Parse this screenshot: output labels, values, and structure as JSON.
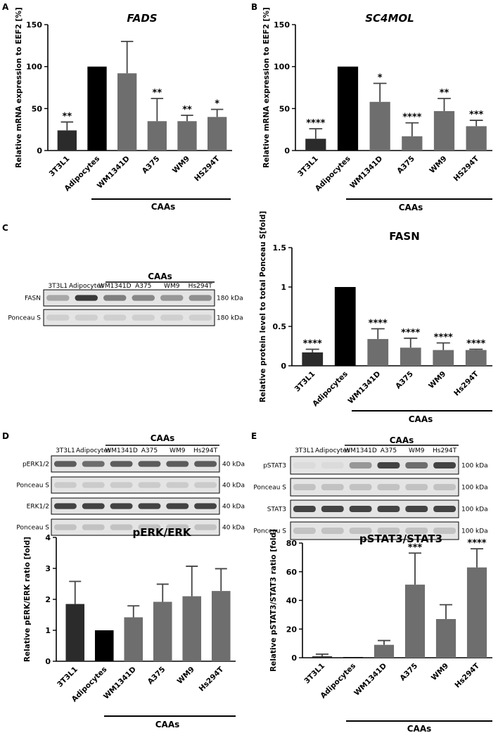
{
  "colors": {
    "black": "#000000",
    "dark": "#2b2b2b",
    "mid": "#6e6e6e",
    "blot_bg": "#e4e4e4",
    "band": "#3a3a3a"
  },
  "blots": {
    "C": {
      "letter": "C",
      "caas": "CAAs",
      "lanes": [
        "3T3L1",
        "Adipocytes",
        "WM1341D",
        "A375",
        "WM9",
        "Hs294T"
      ],
      "strips": [
        {
          "label": "FASN",
          "kda": "180 kDa",
          "intensity": [
            0.35,
            1.0,
            0.6,
            0.55,
            0.45,
            0.5
          ]
        },
        {
          "label": "Ponceau S",
          "kda": "180 kDa",
          "intensity": [
            0.12,
            0.12,
            0.12,
            0.12,
            0.12,
            0.12
          ]
        }
      ]
    },
    "D": {
      "letter": "D",
      "caas": "CAAs",
      "lanes": [
        "3T3L1",
        "Adipocytes",
        "WM1341D",
        "A375",
        "WM9",
        "Hs294T"
      ],
      "strips": [
        {
          "label": "pERK1/2",
          "kda": "40 kDa",
          "intensity": [
            0.8,
            0.7,
            0.8,
            0.8,
            0.8,
            0.8
          ]
        },
        {
          "label": "Ponceau S",
          "kda": "40 kDa",
          "intensity": [
            0.15,
            0.15,
            0.15,
            0.15,
            0.15,
            0.15
          ]
        },
        {
          "label": "ERK1/2",
          "kda": "40 kDa",
          "intensity": [
            0.95,
            0.95,
            0.95,
            0.95,
            0.95,
            0.95
          ]
        },
        {
          "label": "Ponceau S",
          "kda": "40 kDa",
          "intensity": [
            0.2,
            0.2,
            0.2,
            0.2,
            0.2,
            0.2
          ]
        }
      ]
    },
    "E": {
      "letter": "E",
      "caas": "CAAs",
      "lanes": [
        "3T3L1",
        "Adipocytes",
        "WM1341D",
        "A375",
        "WM9",
        "Hs294T"
      ],
      "strips": [
        {
          "label": "pSTAT3",
          "kda": "100 kDa",
          "intensity": [
            0.05,
            0.05,
            0.45,
            0.95,
            0.7,
            0.95
          ]
        },
        {
          "label": "Ponceau S",
          "kda": "100 kDa",
          "intensity": [
            0.2,
            0.2,
            0.2,
            0.2,
            0.2,
            0.2
          ]
        },
        {
          "label": "STAT3",
          "kda": "100 kDa",
          "intensity": [
            0.95,
            0.95,
            0.95,
            0.95,
            0.95,
            0.95
          ]
        },
        {
          "label": "Ponceau S",
          "kda": "100 kDa",
          "intensity": [
            0.2,
            0.2,
            0.2,
            0.2,
            0.2,
            0.2
          ]
        }
      ]
    }
  },
  "chart_data": [
    {
      "type": "bar",
      "letter": "A",
      "title": "FADS",
      "title_italic": true,
      "ylabel": "Relative mRNA expression to EEF2 [%]",
      "categories": [
        "3T3L1",
        "Adipocytes",
        "WM1341D",
        "A375",
        "WM9",
        "HS294T"
      ],
      "values": [
        24,
        100,
        92,
        35,
        35,
        40
      ],
      "errors": [
        10,
        0,
        38,
        27,
        7,
        9
      ],
      "significance": [
        "**",
        "",
        "",
        "**",
        "**",
        "*"
      ],
      "ylim": [
        0,
        150
      ],
      "yticks": [
        0,
        50,
        100,
        150
      ],
      "bracket_label": "CAAs",
      "bar_colors": [
        "#2b2b2b",
        "#000000",
        "#6e6e6e",
        "#6e6e6e",
        "#6e6e6e",
        "#6e6e6e"
      ]
    },
    {
      "type": "bar",
      "letter": "B",
      "title": "SC4MOL",
      "title_italic": true,
      "ylabel": "Relative mRNA expression to EEF2 [%]",
      "categories": [
        "3T3L1",
        "Adipocytes",
        "WM1341D",
        "A375",
        "WM9",
        "HS294T"
      ],
      "values": [
        14,
        100,
        58,
        17,
        47,
        29
      ],
      "errors": [
        12,
        0,
        22,
        16,
        15,
        7
      ],
      "significance": [
        "****",
        "",
        "*",
        "****",
        "**",
        "***"
      ],
      "ylim": [
        0,
        150
      ],
      "yticks": [
        0,
        50,
        100,
        150
      ],
      "bracket_label": "CAAs",
      "bar_colors": [
        "#2b2b2b",
        "#000000",
        "#6e6e6e",
        "#6e6e6e",
        "#6e6e6e",
        "#6e6e6e"
      ]
    },
    {
      "type": "bar",
      "letter": "",
      "title": "FASN",
      "title_italic": false,
      "ylabel": "Relative protein level to total Ponceau S[fold]",
      "categories": [
        "3T3L1",
        "Adipocytes",
        "WM1341D",
        "A375",
        "WM9",
        "Hs294T"
      ],
      "values": [
        0.17,
        1.0,
        0.34,
        0.23,
        0.2,
        0.2
      ],
      "errors": [
        0.04,
        0,
        0.13,
        0.12,
        0.09,
        0.01
      ],
      "significance": [
        "****",
        "",
        "****",
        "****",
        "****",
        "****"
      ],
      "ylim": [
        0,
        1.5
      ],
      "yticks": [
        0.0,
        0.5,
        1.0,
        1.5
      ],
      "bracket_label": "CAAs",
      "bar_colors": [
        "#2b2b2b",
        "#000000",
        "#6e6e6e",
        "#6e6e6e",
        "#6e6e6e",
        "#6e6e6e"
      ]
    },
    {
      "type": "bar",
      "letter": "",
      "title": "pERK/ERK",
      "title_italic": false,
      "ylabel": "Relative pERK/ERK ratio [fold]",
      "categories": [
        "3T3L1",
        "Adipocytes",
        "WM1341D",
        "A375",
        "WM9",
        "Hs294T"
      ],
      "values": [
        1.85,
        1.0,
        1.42,
        1.92,
        2.1,
        2.27
      ],
      "errors": [
        0.73,
        0,
        0.37,
        0.57,
        0.97,
        0.72
      ],
      "significance": [
        "",
        "",
        "",
        "",
        "",
        ""
      ],
      "ylim": [
        0,
        4
      ],
      "yticks": [
        0,
        1,
        2,
        3,
        4
      ],
      "bracket_label": "CAAs",
      "bar_colors": [
        "#2b2b2b",
        "#000000",
        "#6e6e6e",
        "#6e6e6e",
        "#6e6e6e",
        "#6e6e6e"
      ]
    },
    {
      "type": "bar",
      "letter": "",
      "title": "pSTAT3/STAT3",
      "title_italic": false,
      "ylabel": "Relative pSTAT3/STAT3 ratio [fold]",
      "categories": [
        "3T3L1",
        "Adipocytes",
        "WM1341D",
        "A375",
        "WM9",
        "Hs294T"
      ],
      "values": [
        1,
        0.5,
        9,
        51,
        27,
        63
      ],
      "errors": [
        1.5,
        0,
        3,
        22,
        10,
        13
      ],
      "significance": [
        "",
        "",
        "",
        "***",
        "",
        "****"
      ],
      "ylim": [
        0,
        80
      ],
      "yticks": [
        0,
        20,
        40,
        60,
        80
      ],
      "bracket_label": "CAAs",
      "bar_colors": [
        "#2b2b2b",
        "#000000",
        "#6e6e6e",
        "#6e6e6e",
        "#6e6e6e",
        "#6e6e6e"
      ]
    }
  ]
}
